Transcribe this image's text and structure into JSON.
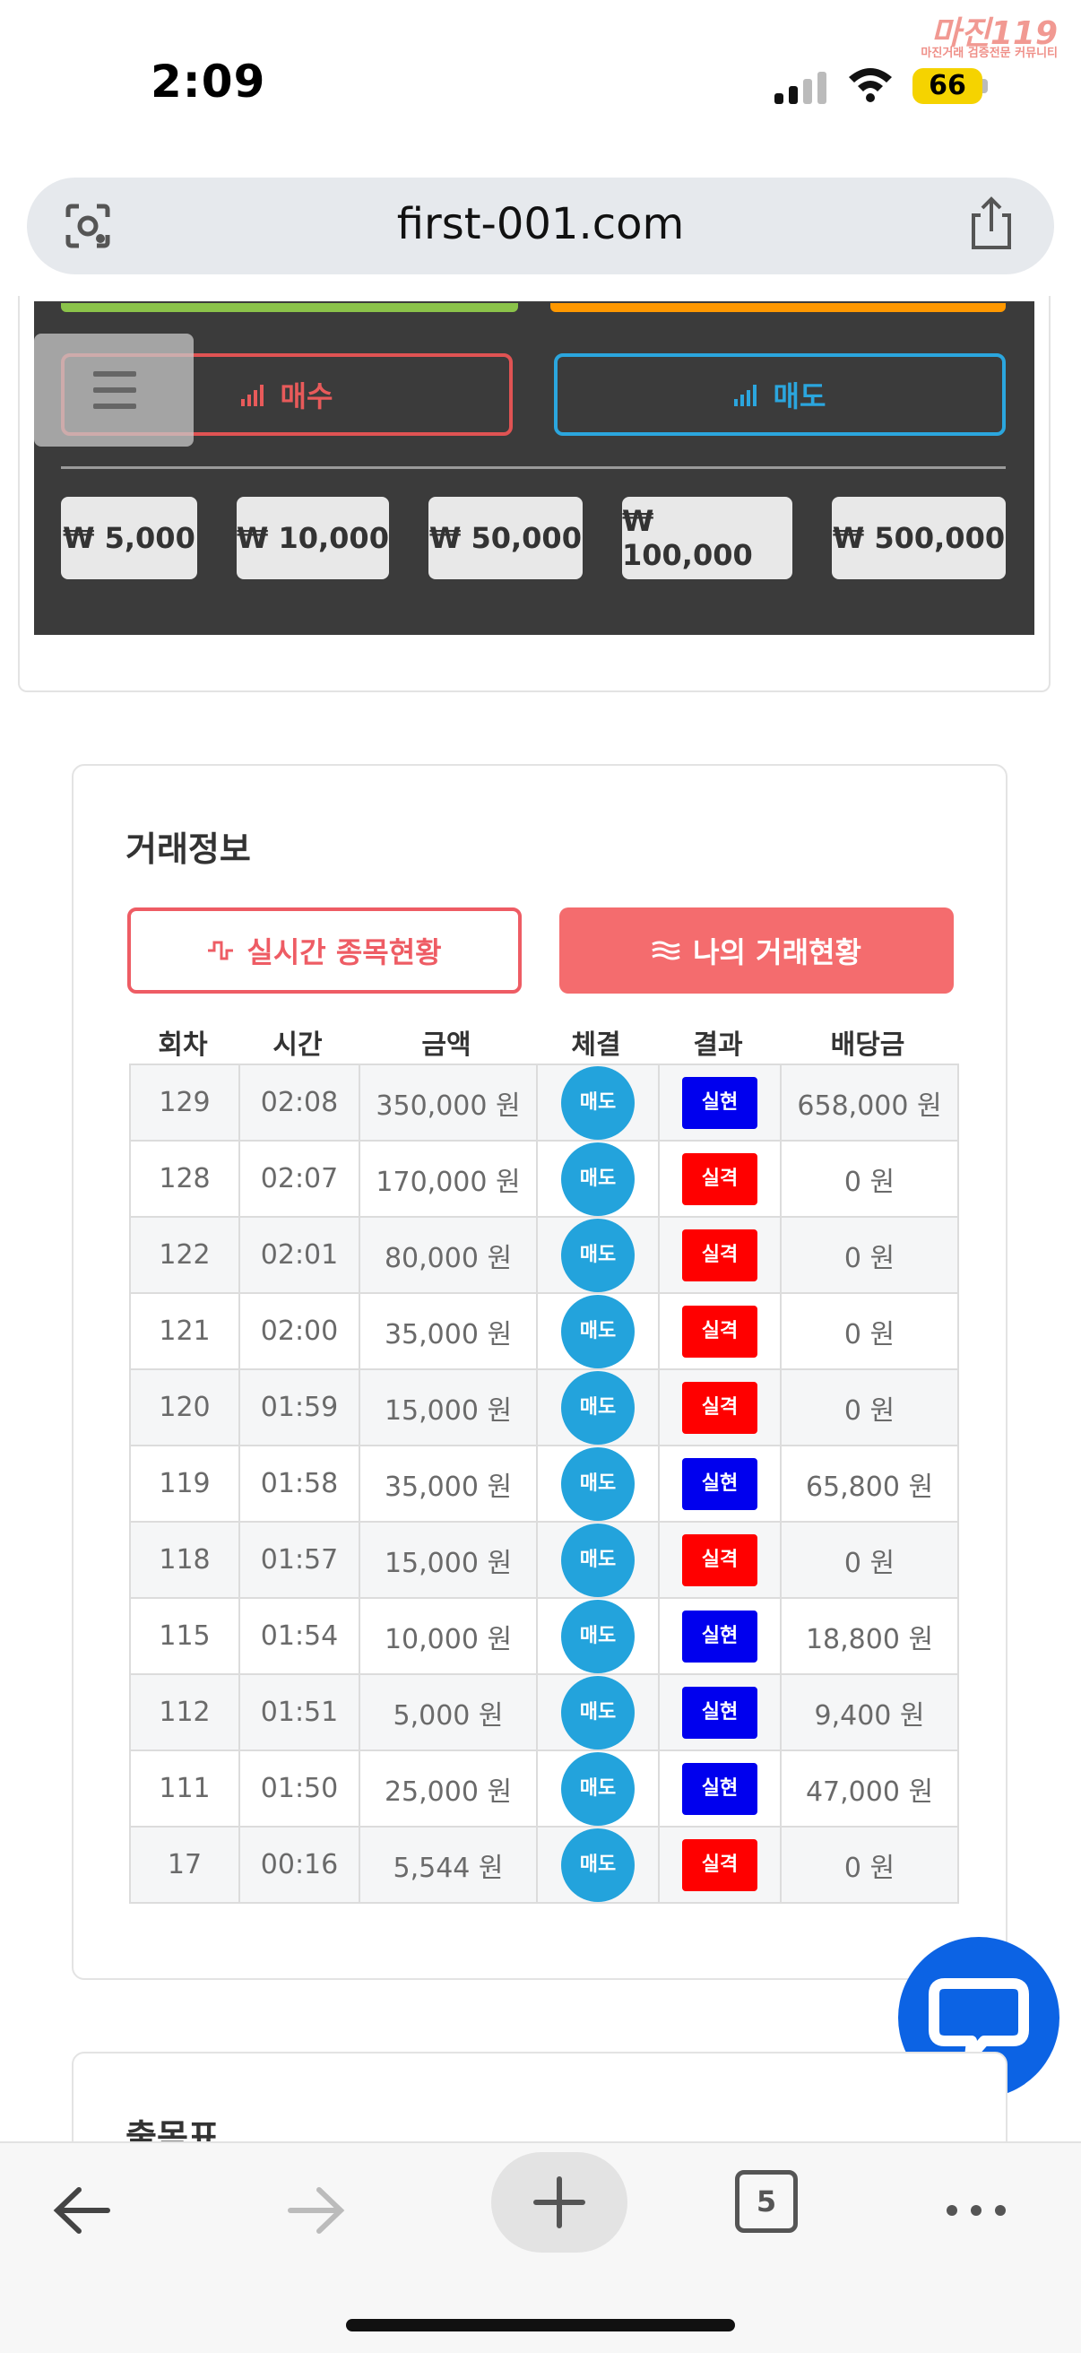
{
  "status_bar": {
    "time": "2:09",
    "battery": "66"
  },
  "watermark": {
    "brand": "마진119",
    "tagline": "마진거래 검증전문 커뮤니티"
  },
  "browser": {
    "url": "first-001.com",
    "tab_count": "5"
  },
  "trade_panel": {
    "buy_label": "매수",
    "sell_label": "매도",
    "amounts": [
      "₩ 5,000",
      "₩ 10,000",
      "₩ 50,000",
      "₩ 100,000",
      "₩ 500,000"
    ]
  },
  "trade_info": {
    "title": "거래정보",
    "tab_live": "실시간 종목현황",
    "tab_mine": "나의 거래현황",
    "columns": [
      "회차",
      "시간",
      "금액",
      "체결",
      "결과",
      "배당금"
    ],
    "rows": [
      {
        "round": "129",
        "time": "02:08",
        "amount": "350,000 원",
        "exec": "매도",
        "result": "실현",
        "payout": "658,000 원"
      },
      {
        "round": "128",
        "time": "02:07",
        "amount": "170,000 원",
        "exec": "매도",
        "result": "실격",
        "payout": "0 원"
      },
      {
        "round": "122",
        "time": "02:01",
        "amount": "80,000 원",
        "exec": "매도",
        "result": "실격",
        "payout": "0 원"
      },
      {
        "round": "121",
        "time": "02:00",
        "amount": "35,000 원",
        "exec": "매도",
        "result": "실격",
        "payout": "0 원"
      },
      {
        "round": "120",
        "time": "01:59",
        "amount": "15,000 원",
        "exec": "매도",
        "result": "실격",
        "payout": "0 원"
      },
      {
        "round": "119",
        "time": "01:58",
        "amount": "35,000 원",
        "exec": "매도",
        "result": "실현",
        "payout": "65,800 원"
      },
      {
        "round": "118",
        "time": "01:57",
        "amount": "15,000 원",
        "exec": "매도",
        "result": "실격",
        "payout": "0 원"
      },
      {
        "round": "115",
        "time": "01:54",
        "amount": "10,000 원",
        "exec": "매도",
        "result": "실현",
        "payout": "18,800 원"
      },
      {
        "round": "112",
        "time": "01:51",
        "amount": "5,000 원",
        "exec": "매도",
        "result": "실현",
        "payout": "9,400 원"
      },
      {
        "round": "111",
        "time": "01:50",
        "amount": "25,000 원",
        "exec": "매도",
        "result": "실현",
        "payout": "47,000 원"
      },
      {
        "round": "17",
        "time": "00:16",
        "amount": "5,544 원",
        "exec": "매도",
        "result": "실격",
        "payout": "0 원"
      }
    ]
  },
  "next_section": {
    "title": "출목표"
  },
  "colors": {
    "win": "#0000ee",
    "lose": "#ff0000",
    "sell": "#23a3dc",
    "buy": "#e05353"
  }
}
